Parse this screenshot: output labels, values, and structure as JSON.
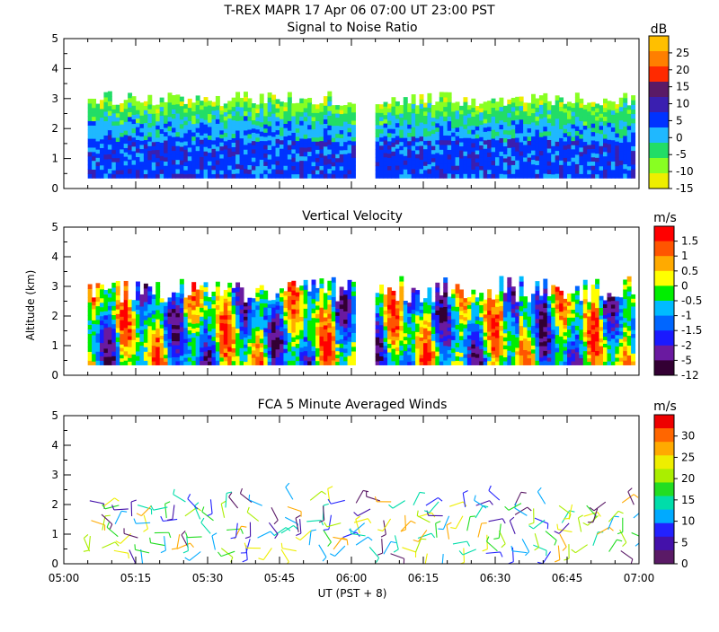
{
  "header": {
    "title": "T-REX   MAPR 17 Apr 06   07:00 UT   23:00   PST"
  },
  "chart_data": [
    {
      "type": "heatmap",
      "title": "Signal to Noise Ratio",
      "unit": "dB",
      "ylabel": "",
      "xlabel": "",
      "xlim": [
        "05:00",
        "07:00"
      ],
      "ylim": [
        0,
        5
      ],
      "x_ticks": [],
      "y_ticks": [
        "0",
        "1",
        "2",
        "3",
        "4",
        "5"
      ],
      "colorbar": {
        "labels": [
          "25",
          "20",
          "15",
          "10",
          "5",
          "0",
          "-5",
          "-10",
          "-15"
        ],
        "colors": [
          "#ffbf00",
          "#ff7f00",
          "#ff2a00",
          "#5a1a66",
          "#3a1fb0",
          "#0033ff",
          "#1fb8ff",
          "#22dd66",
          "#88ff22",
          "#eeee00"
        ]
      },
      "data_gaps": [
        [
          "06:00",
          "06:05"
        ]
      ],
      "data_range_km": [
        0.35,
        3.0
      ]
    },
    {
      "type": "heatmap",
      "title": "Vertical Velocity",
      "unit": "m/s",
      "ylabel": "Altitude (km)",
      "xlabel": "",
      "xlim": [
        "05:00",
        "07:00"
      ],
      "ylim": [
        0,
        5
      ],
      "x_ticks": [],
      "y_ticks": [
        "0",
        "1",
        "2",
        "3",
        "4",
        "5"
      ],
      "colorbar": {
        "labels": [
          "1.5",
          "1",
          "0.5",
          "0",
          "-0.5",
          "-1",
          "-1.5",
          "-2",
          "-5",
          "-12"
        ],
        "colors": [
          "#ff0000",
          "#ff5500",
          "#ffaa00",
          "#ffff00",
          "#00ee00",
          "#00bbff",
          "#0066ff",
          "#1a1aff",
          "#6a1aa0",
          "#330033"
        ]
      },
      "data_gaps": [
        [
          "06:00",
          "06:05"
        ]
      ],
      "data_range_km": [
        0.35,
        2.9
      ]
    },
    {
      "type": "scatter",
      "title": "FCA 5 Minute Averaged Winds",
      "unit": "m/s",
      "ylabel": "",
      "xlabel": "UT  (PST + 8)",
      "xlim": [
        "05:00",
        "07:00"
      ],
      "ylim": [
        0,
        5
      ],
      "x_ticks": [
        "05:00",
        "05:15",
        "05:30",
        "05:45",
        "06:00",
        "06:15",
        "06:30",
        "06:45",
        "07:00"
      ],
      "y_ticks": [
        "0",
        "1",
        "2",
        "3",
        "4",
        "5"
      ],
      "colorbar": {
        "labels": [
          "30",
          "25",
          "20",
          "15",
          "10",
          "5",
          "0"
        ],
        "colors": [
          "#ee0000",
          "#ff6600",
          "#ffaa00",
          "#eeee00",
          "#aaee00",
          "#22dd22",
          "#00ddaa",
          "#00aaff",
          "#2222ff",
          "#4411aa",
          "#5a1a66"
        ]
      },
      "data_range_km": [
        0.3,
        2.6
      ]
    }
  ]
}
